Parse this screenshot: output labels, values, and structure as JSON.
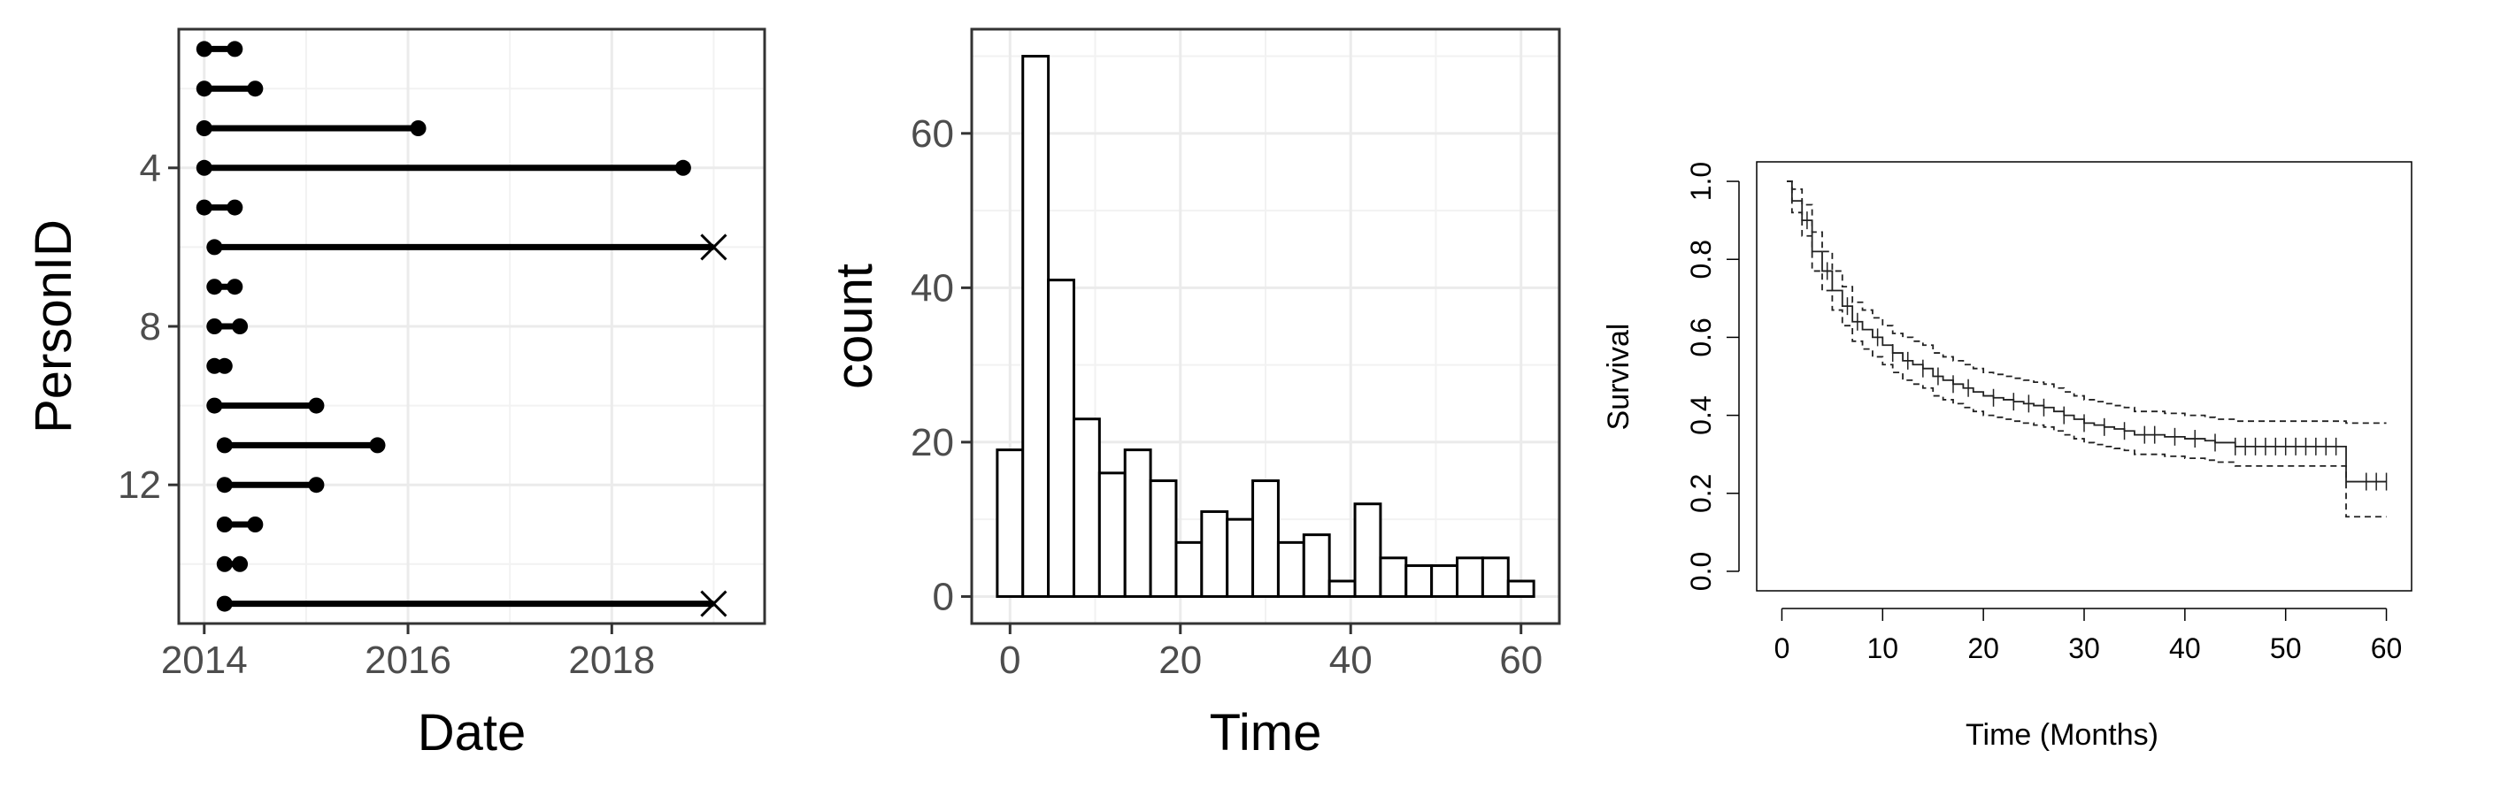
{
  "chart_data": [
    {
      "type": "dumbbell",
      "xlabel": "Date",
      "ylabel": "PersonID",
      "xticks": [
        "2014",
        "2016",
        "2018"
      ],
      "yticks": [
        "4",
        "8",
        "12"
      ],
      "xlim": [
        2013.75,
        2019.5
      ],
      "ylim": [
        0.5,
        15.5
      ],
      "y_reversed": true,
      "grid": true,
      "segments": [
        {
          "id": 1,
          "start": 2014.0,
          "end": 2014.3,
          "end_marker": "dot"
        },
        {
          "id": 2,
          "start": 2014.0,
          "end": 2014.5,
          "end_marker": "dot"
        },
        {
          "id": 3,
          "start": 2014.0,
          "end": 2016.1,
          "end_marker": "dot"
        },
        {
          "id": 4,
          "start": 2014.0,
          "end": 2018.7,
          "end_marker": "dot"
        },
        {
          "id": 5,
          "start": 2014.0,
          "end": 2014.3,
          "end_marker": "dot"
        },
        {
          "id": 6,
          "start": 2014.1,
          "end": 2019.0,
          "end_marker": "cross"
        },
        {
          "id": 7,
          "start": 2014.1,
          "end": 2014.3,
          "end_marker": "dot"
        },
        {
          "id": 8,
          "start": 2014.1,
          "end": 2014.35,
          "end_marker": "dot"
        },
        {
          "id": 9,
          "start": 2014.1,
          "end": 2014.2,
          "end_marker": "dot"
        },
        {
          "id": 10,
          "start": 2014.1,
          "end": 2015.1,
          "end_marker": "dot"
        },
        {
          "id": 11,
          "start": 2014.2,
          "end": 2015.7,
          "end_marker": "dot"
        },
        {
          "id": 12,
          "start": 2014.2,
          "end": 2015.1,
          "end_marker": "dot"
        },
        {
          "id": 13,
          "start": 2014.2,
          "end": 2014.5,
          "end_marker": "dot"
        },
        {
          "id": 14,
          "start": 2014.2,
          "end": 2014.35,
          "end_marker": "dot"
        },
        {
          "id": 15,
          "start": 2014.2,
          "end": 2019.0,
          "end_marker": "cross"
        }
      ]
    },
    {
      "type": "histogram",
      "xlabel": "Time",
      "ylabel": "count",
      "xticks": [
        0,
        20,
        40,
        60
      ],
      "yticks": [
        0,
        20,
        40,
        60
      ],
      "bin_width": 3,
      "bin_start": -1.5,
      "xlim": [
        -4.5,
        64.5
      ],
      "ylim": [
        -3.5,
        73.5
      ],
      "grid": true,
      "values": [
        19,
        70,
        41,
        23,
        16,
        19,
        15,
        7,
        11,
        10,
        15,
        7,
        8,
        2,
        12,
        5,
        4,
        4,
        5,
        5,
        2
      ]
    },
    {
      "type": "line",
      "xlabel": "Time (Months)",
      "ylabel": "Survival",
      "xticks": [
        "0",
        "10",
        "20",
        "30",
        "40",
        "50",
        "60"
      ],
      "yticks": [
        "0.0",
        "0.2",
        "0.4",
        "0.6",
        "0.8",
        "1.0"
      ],
      "xlim": [
        -2.5,
        62.5
      ],
      "ylim": [
        -0.05,
        1.05
      ],
      "grid": false,
      "series": [
        {
          "style": "solid",
          "x": [
            0.5,
            1,
            2,
            3,
            4,
            5,
            6,
            7,
            8,
            9,
            10,
            11,
            12,
            13,
            14,
            15,
            16,
            17,
            18,
            19,
            20,
            21,
            22,
            23,
            24,
            25,
            26,
            27,
            28,
            29,
            30,
            31,
            32,
            33,
            34,
            35,
            36,
            37,
            38,
            39,
            40,
            41,
            42,
            43,
            44,
            45,
            46,
            47,
            48,
            49,
            50,
            51,
            52,
            53,
            54,
            55,
            56,
            57,
            58,
            59,
            60
          ],
          "y": [
            1.0,
            0.95,
            0.9,
            0.82,
            0.77,
            0.72,
            0.68,
            0.64,
            0.62,
            0.6,
            0.58,
            0.56,
            0.54,
            0.53,
            0.52,
            0.5,
            0.49,
            0.48,
            0.47,
            0.46,
            0.45,
            0.445,
            0.44,
            0.435,
            0.43,
            0.425,
            0.42,
            0.41,
            0.4,
            0.39,
            0.38,
            0.375,
            0.37,
            0.365,
            0.36,
            0.35,
            0.35,
            0.35,
            0.345,
            0.345,
            0.34,
            0.34,
            0.335,
            0.33,
            0.33,
            0.32,
            0.32,
            0.32,
            0.32,
            0.32,
            0.32,
            0.32,
            0.32,
            0.32,
            0.32,
            0.32,
            0.23,
            0.23,
            0.23,
            0.23,
            0.23
          ]
        },
        {
          "style": "dashed",
          "x": [
            0.5,
            1,
            2,
            3,
            4,
            5,
            6,
            7,
            8,
            9,
            10,
            11,
            12,
            13,
            14,
            15,
            16,
            17,
            18,
            19,
            20,
            21,
            22,
            23,
            24,
            25,
            26,
            27,
            28,
            29,
            30,
            31,
            32,
            33,
            34,
            35,
            36,
            37,
            38,
            39,
            40,
            41,
            42,
            43,
            44,
            45,
            46,
            47,
            48,
            49,
            50,
            51,
            52,
            53,
            54,
            55,
            56,
            57,
            58,
            59,
            60
          ],
          "y": [
            1.0,
            0.98,
            0.94,
            0.87,
            0.82,
            0.77,
            0.73,
            0.69,
            0.67,
            0.65,
            0.63,
            0.61,
            0.6,
            0.59,
            0.58,
            0.56,
            0.55,
            0.54,
            0.53,
            0.52,
            0.51,
            0.505,
            0.5,
            0.495,
            0.49,
            0.485,
            0.48,
            0.47,
            0.46,
            0.45,
            0.44,
            0.435,
            0.43,
            0.425,
            0.42,
            0.41,
            0.41,
            0.41,
            0.405,
            0.405,
            0.4,
            0.4,
            0.395,
            0.39,
            0.39,
            0.385,
            0.385,
            0.385,
            0.385,
            0.385,
            0.385,
            0.385,
            0.385,
            0.385,
            0.385,
            0.385,
            0.38,
            0.38,
            0.38,
            0.38,
            0.38
          ]
        },
        {
          "style": "dashed",
          "x": [
            0.5,
            1,
            2,
            3,
            4,
            5,
            6,
            7,
            8,
            9,
            10,
            11,
            12,
            13,
            14,
            15,
            16,
            17,
            18,
            19,
            20,
            21,
            22,
            23,
            24,
            25,
            26,
            27,
            28,
            29,
            30,
            31,
            32,
            33,
            34,
            35,
            36,
            37,
            38,
            39,
            40,
            41,
            42,
            43,
            44,
            45,
            46,
            47,
            48,
            49,
            50,
            51,
            52,
            53,
            54,
            55,
            56,
            57,
            58,
            59,
            60
          ],
          "y": [
            1.0,
            0.92,
            0.86,
            0.77,
            0.72,
            0.67,
            0.63,
            0.59,
            0.57,
            0.55,
            0.53,
            0.51,
            0.49,
            0.48,
            0.47,
            0.45,
            0.44,
            0.43,
            0.42,
            0.41,
            0.4,
            0.395,
            0.39,
            0.385,
            0.38,
            0.375,
            0.37,
            0.36,
            0.35,
            0.34,
            0.33,
            0.325,
            0.32,
            0.315,
            0.31,
            0.3,
            0.3,
            0.3,
            0.295,
            0.295,
            0.29,
            0.29,
            0.285,
            0.28,
            0.28,
            0.27,
            0.27,
            0.27,
            0.27,
            0.27,
            0.27,
            0.27,
            0.27,
            0.27,
            0.27,
            0.27,
            0.14,
            0.14,
            0.14,
            0.14,
            0.14
          ]
        }
      ],
      "censor_times": [
        2.5,
        4.5,
        6.5,
        7.5,
        9.5,
        11,
        12.5,
        14,
        15.5,
        17,
        18.5,
        21,
        23,
        24.5,
        26,
        28,
        30,
        32,
        34,
        36,
        37,
        39,
        41,
        43,
        45,
        46,
        47,
        48,
        49,
        50,
        51,
        52,
        53,
        54,
        55,
        58,
        59,
        60
      ]
    }
  ]
}
